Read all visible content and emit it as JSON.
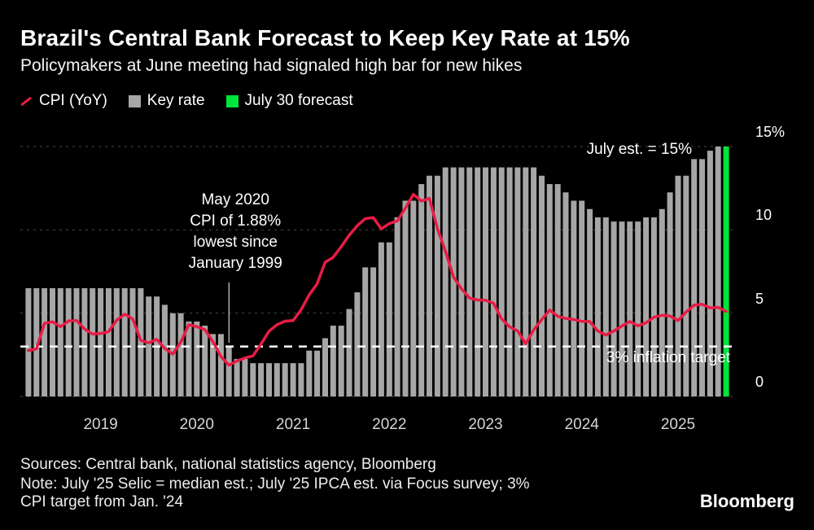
{
  "header": {
    "title": "Brazil's Central Bank Forecast to Keep Key Rate at 15%",
    "subtitle": "Policymakers at June meeting had signaled high bar for new hikes"
  },
  "legend": {
    "cpi": "CPI (YoY)",
    "key_rate": "Key rate",
    "forecast": "July 30 forecast"
  },
  "colors": {
    "background": "#000000",
    "accent_red": "#e81c45",
    "bar_gray": "#a6a6a6",
    "forecast_green": "#00e53b",
    "grid": "#484848",
    "target_line": "#ffffff",
    "pointer_line": "#ffffff"
  },
  "chart_data": {
    "type": "bar+line",
    "title": "Brazil's Central Bank Forecast to Keep Key Rate at 15%",
    "unit": "%",
    "ylim": [
      0,
      15
    ],
    "grid": "dashed-horizontal",
    "months": [
      "2018-04",
      "2018-05",
      "2018-06",
      "2018-07",
      "2018-08",
      "2018-09",
      "2018-10",
      "2018-11",
      "2018-12",
      "2019-01",
      "2019-02",
      "2019-03",
      "2019-04",
      "2019-05",
      "2019-06",
      "2019-07",
      "2019-08",
      "2019-09",
      "2019-10",
      "2019-11",
      "2019-12",
      "2020-01",
      "2020-02",
      "2020-03",
      "2020-04",
      "2020-05",
      "2020-06",
      "2020-07",
      "2020-08",
      "2020-09",
      "2020-10",
      "2020-11",
      "2020-12",
      "2021-01",
      "2021-02",
      "2021-03",
      "2021-04",
      "2021-05",
      "2021-06",
      "2021-07",
      "2021-08",
      "2021-09",
      "2021-10",
      "2021-11",
      "2021-12",
      "2022-01",
      "2022-02",
      "2022-03",
      "2022-04",
      "2022-05",
      "2022-06",
      "2022-07",
      "2022-08",
      "2022-09",
      "2022-10",
      "2022-11",
      "2022-12",
      "2023-01",
      "2023-02",
      "2023-03",
      "2023-04",
      "2023-05",
      "2023-06",
      "2023-07",
      "2023-08",
      "2023-09",
      "2023-10",
      "2023-11",
      "2023-12",
      "2024-01",
      "2024-02",
      "2024-03",
      "2024-04",
      "2024-05",
      "2024-06",
      "2024-07",
      "2024-08",
      "2024-09",
      "2024-10",
      "2024-11",
      "2024-12",
      "2025-01",
      "2025-02",
      "2025-03",
      "2025-04",
      "2025-05",
      "2025-06",
      "2025-07"
    ],
    "series": [
      {
        "name": "Key rate",
        "type": "bar",
        "values": [
          6.5,
          6.5,
          6.5,
          6.5,
          6.5,
          6.5,
          6.5,
          6.5,
          6.5,
          6.5,
          6.5,
          6.5,
          6.5,
          6.5,
          6.5,
          6.0,
          6.0,
          5.5,
          5.0,
          5.0,
          4.5,
          4.5,
          4.25,
          3.75,
          3.75,
          3.0,
          2.25,
          2.25,
          2.0,
          2.0,
          2.0,
          2.0,
          2.0,
          2.0,
          2.0,
          2.75,
          2.75,
          3.5,
          4.25,
          4.25,
          5.25,
          6.25,
          7.75,
          7.75,
          9.25,
          9.25,
          10.75,
          11.75,
          11.75,
          12.75,
          13.25,
          13.25,
          13.75,
          13.75,
          13.75,
          13.75,
          13.75,
          13.75,
          13.75,
          13.75,
          13.75,
          13.75,
          13.75,
          13.75,
          13.25,
          12.75,
          12.75,
          12.25,
          11.75,
          11.75,
          11.25,
          10.75,
          10.75,
          10.5,
          10.5,
          10.5,
          10.5,
          10.75,
          10.75,
          11.25,
          12.25,
          13.25,
          13.25,
          14.25,
          14.25,
          14.75,
          15.0,
          15.0
        ]
      },
      {
        "name": "CPI (YoY)",
        "type": "line",
        "values": [
          2.76,
          2.86,
          4.39,
          4.48,
          4.19,
          4.53,
          4.56,
          4.05,
          3.75,
          3.78,
          3.89,
          4.58,
          4.94,
          4.66,
          3.37,
          3.22,
          3.43,
          2.89,
          2.54,
          3.27,
          4.31,
          4.19,
          4.01,
          3.3,
          2.4,
          1.88,
          2.13,
          2.31,
          2.44,
          3.14,
          3.92,
          4.31,
          4.52,
          4.56,
          5.2,
          6.1,
          6.76,
          8.06,
          8.35,
          8.99,
          9.68,
          10.25,
          10.67,
          10.74,
          10.06,
          10.38,
          10.54,
          11.3,
          12.13,
          11.73,
          11.89,
          10.07,
          8.73,
          7.17,
          6.47,
          5.9,
          5.79,
          5.77,
          5.6,
          4.65,
          4.18,
          3.94,
          3.16,
          3.99,
          4.61,
          5.19,
          4.82,
          4.68,
          4.62,
          4.51,
          4.5,
          3.93,
          3.69,
          3.93,
          4.23,
          4.5,
          4.24,
          4.42,
          4.76,
          4.87,
          4.83,
          4.56,
          5.06,
          5.48,
          5.53,
          5.32,
          5.35,
          5.1
        ]
      }
    ],
    "forecast_index": 87,
    "forecast_value": 15,
    "target_value": 3,
    "y_ticks": [
      {
        "label": "15%",
        "value": 15
      },
      {
        "label": "10",
        "value": 10
      },
      {
        "label": "5",
        "value": 5
      },
      {
        "label": "0",
        "value": 0
      }
    ],
    "x_ticks": [
      {
        "label": "2019",
        "month_index": 9
      },
      {
        "label": "2020",
        "month_index": 21
      },
      {
        "label": "2021",
        "month_index": 33
      },
      {
        "label": "2022",
        "month_index": 45
      },
      {
        "label": "2023",
        "month_index": 57
      },
      {
        "label": "2024",
        "month_index": 69
      },
      {
        "label": "2025",
        "month_index": 81
      }
    ],
    "annotations": {
      "july_estimate": "July est. = 15%",
      "may2020_lines": [
        "May 2020",
        "CPI of 1.88%",
        "lowest since",
        "January 1999"
      ],
      "may2020_month_index": 25,
      "inflation_target": "3% inflation target"
    }
  },
  "footer": {
    "sources": "Sources: Central bank, national statistics agency, Bloomberg",
    "note_line1": "Note: July '25 Selic = median est.; July '25 IPCA est. via Focus survey; 3%",
    "note_line2": "CPI target from Jan. '24",
    "brand": "Bloomberg"
  }
}
